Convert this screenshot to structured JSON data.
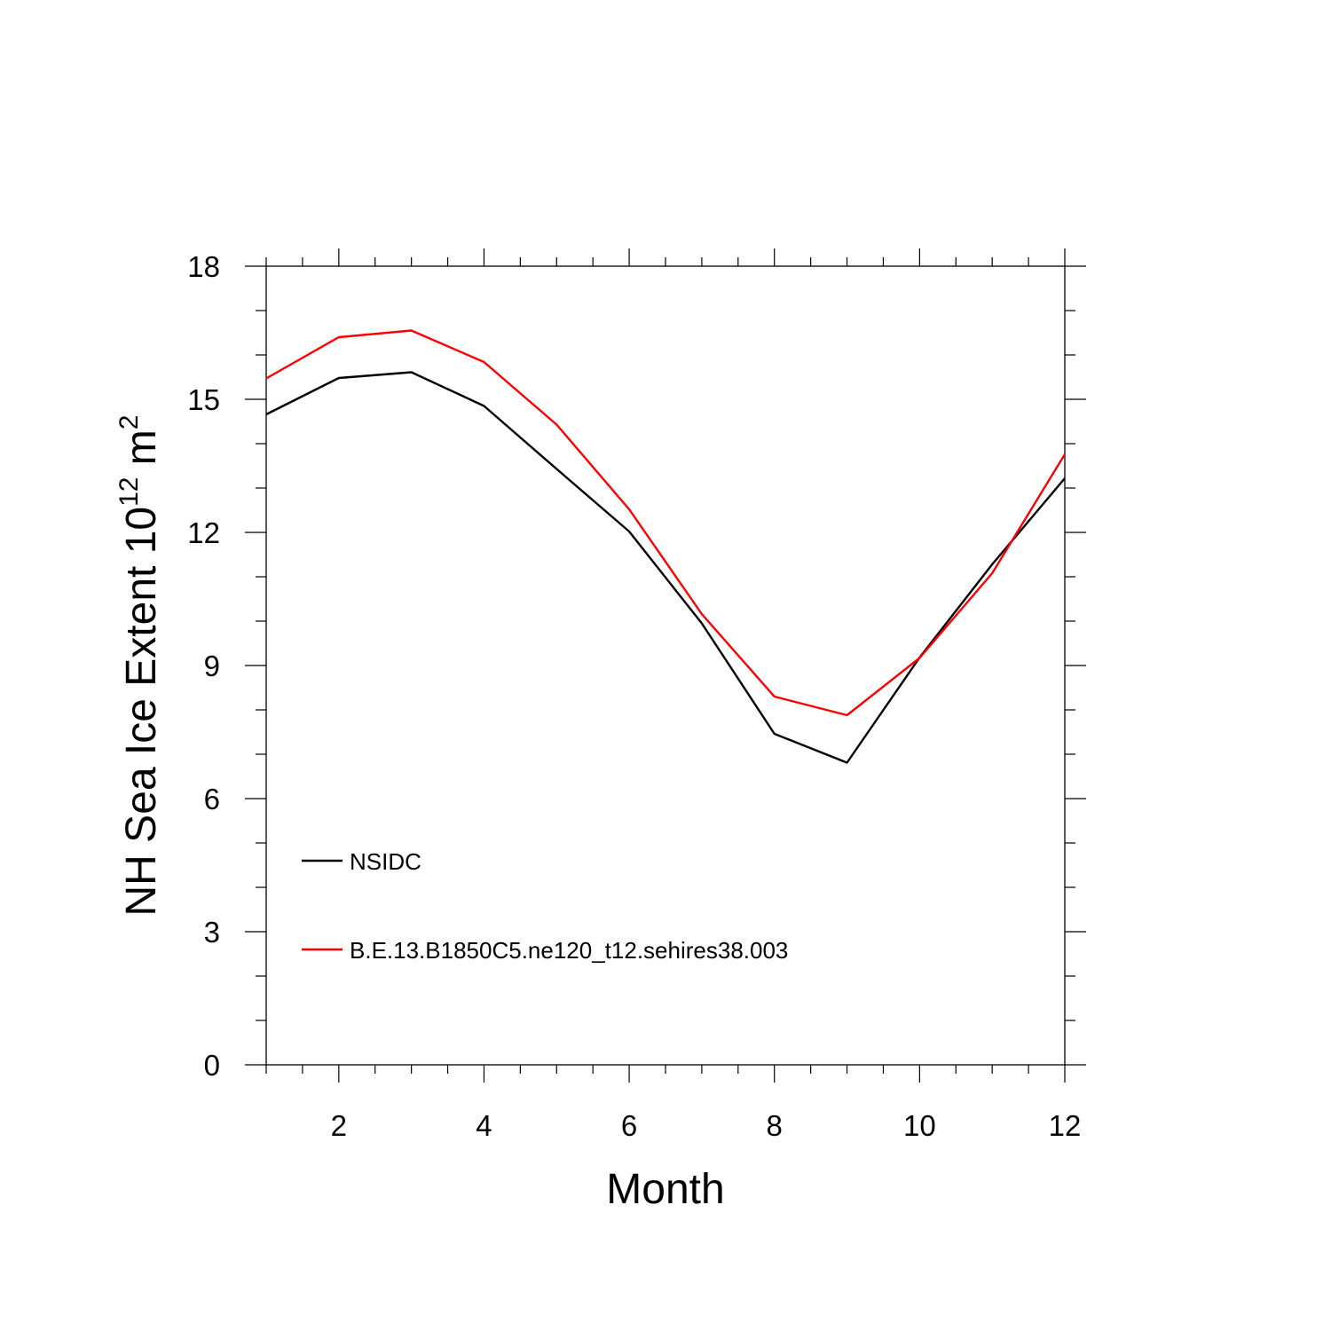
{
  "chart_data": {
    "type": "line",
    "title": "",
    "xlabel": "Month",
    "ylabel": "NH Sea Ice Extent 10",
    "ylabel_sup_exp": "12",
    "ylabel_unit": " m",
    "ylabel_unit_exp": "2",
    "x": [
      1,
      2,
      3,
      4,
      5,
      6,
      7,
      8,
      9,
      10,
      11,
      12
    ],
    "xlim": [
      1,
      12
    ],
    "ylim": [
      0,
      18
    ],
    "xticks": [
      2,
      4,
      6,
      8,
      10,
      12
    ],
    "xtick_labels": [
      "2",
      "4",
      "6",
      "8",
      "10",
      "12"
    ],
    "yticks": [
      0,
      3,
      6,
      9,
      12,
      15,
      18
    ],
    "ytick_labels": [
      "0",
      "3",
      "6",
      "9",
      "12",
      "15",
      "18"
    ],
    "grid": false,
    "legend_position": "lower-left",
    "series": [
      {
        "name": "NSIDC",
        "color": "#000000",
        "values": [
          14.66,
          15.48,
          15.61,
          14.85,
          13.43,
          12.02,
          9.95,
          7.46,
          6.81,
          9.18,
          11.28,
          13.22
        ]
      },
      {
        "name": "B.E.13.B1850C5.ne120_t12.sehires38.003",
        "color": "#ff0000",
        "values": [
          15.47,
          16.4,
          16.55,
          15.84,
          14.43,
          12.52,
          10.16,
          8.3,
          7.88,
          9.17,
          11.08,
          13.76
        ]
      }
    ]
  }
}
